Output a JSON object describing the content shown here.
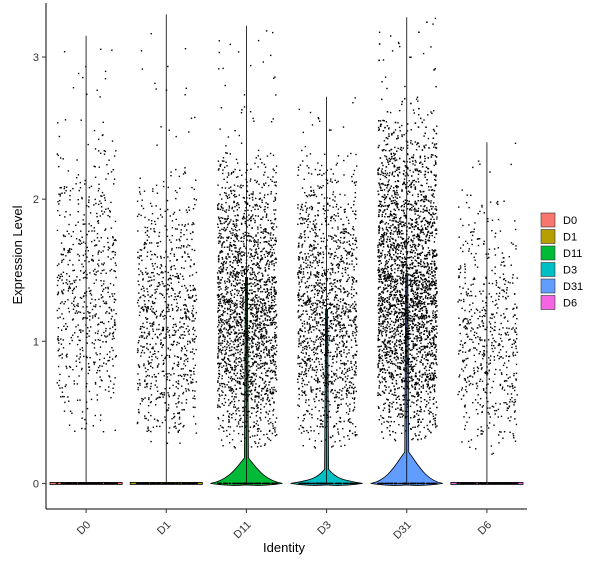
{
  "chart_data": {
    "type": "violin",
    "title": "",
    "xlabel": "Identity",
    "ylabel": "Expression Level",
    "categories": [
      "D0",
      "D1",
      "D11",
      "D3",
      "D31",
      "D6"
    ],
    "ylim": [
      -0.18,
      3.38
    ],
    "yticks": [
      0,
      1,
      2,
      3
    ],
    "grid": false,
    "legend_position": "right",
    "series": [
      {
        "name": "D0",
        "color": "#F8766D",
        "max": 3.15,
        "cluster_min": 0.3,
        "cluster_max": 2.6,
        "points_above_zero": 640,
        "violin_zero_halfwidth": 0.5,
        "violin_bulge": 0
      },
      {
        "name": "D1",
        "color": "#B79F00",
        "max": 3.3,
        "cluster_min": 0.25,
        "cluster_max": 2.3,
        "points_above_zero": 860,
        "violin_zero_halfwidth": 0.5,
        "violin_bulge": 0
      },
      {
        "name": "D11",
        "color": "#00BA38",
        "max": 3.22,
        "cluster_min": 0.25,
        "cluster_max": 2.4,
        "points_above_zero": 2200,
        "violin_zero_halfwidth": 0.5,
        "violin_bulge": 0.18
      },
      {
        "name": "D3",
        "color": "#00BFC4",
        "max": 2.72,
        "cluster_min": 0.25,
        "cluster_max": 2.4,
        "points_above_zero": 1500,
        "violin_zero_halfwidth": 0.5,
        "violin_bulge": 0.1
      },
      {
        "name": "D31",
        "color": "#619CFF",
        "max": 3.28,
        "cluster_min": 0.3,
        "cluster_max": 2.7,
        "points_above_zero": 3600,
        "violin_zero_halfwidth": 0.5,
        "violin_bulge": 0.22
      },
      {
        "name": "D6",
        "color": "#F564E3",
        "max": 2.4,
        "cluster_min": 0.2,
        "cluster_max": 2.1,
        "points_above_zero": 600,
        "violin_zero_halfwidth": 0.5,
        "violin_bulge": 0
      }
    ]
  }
}
